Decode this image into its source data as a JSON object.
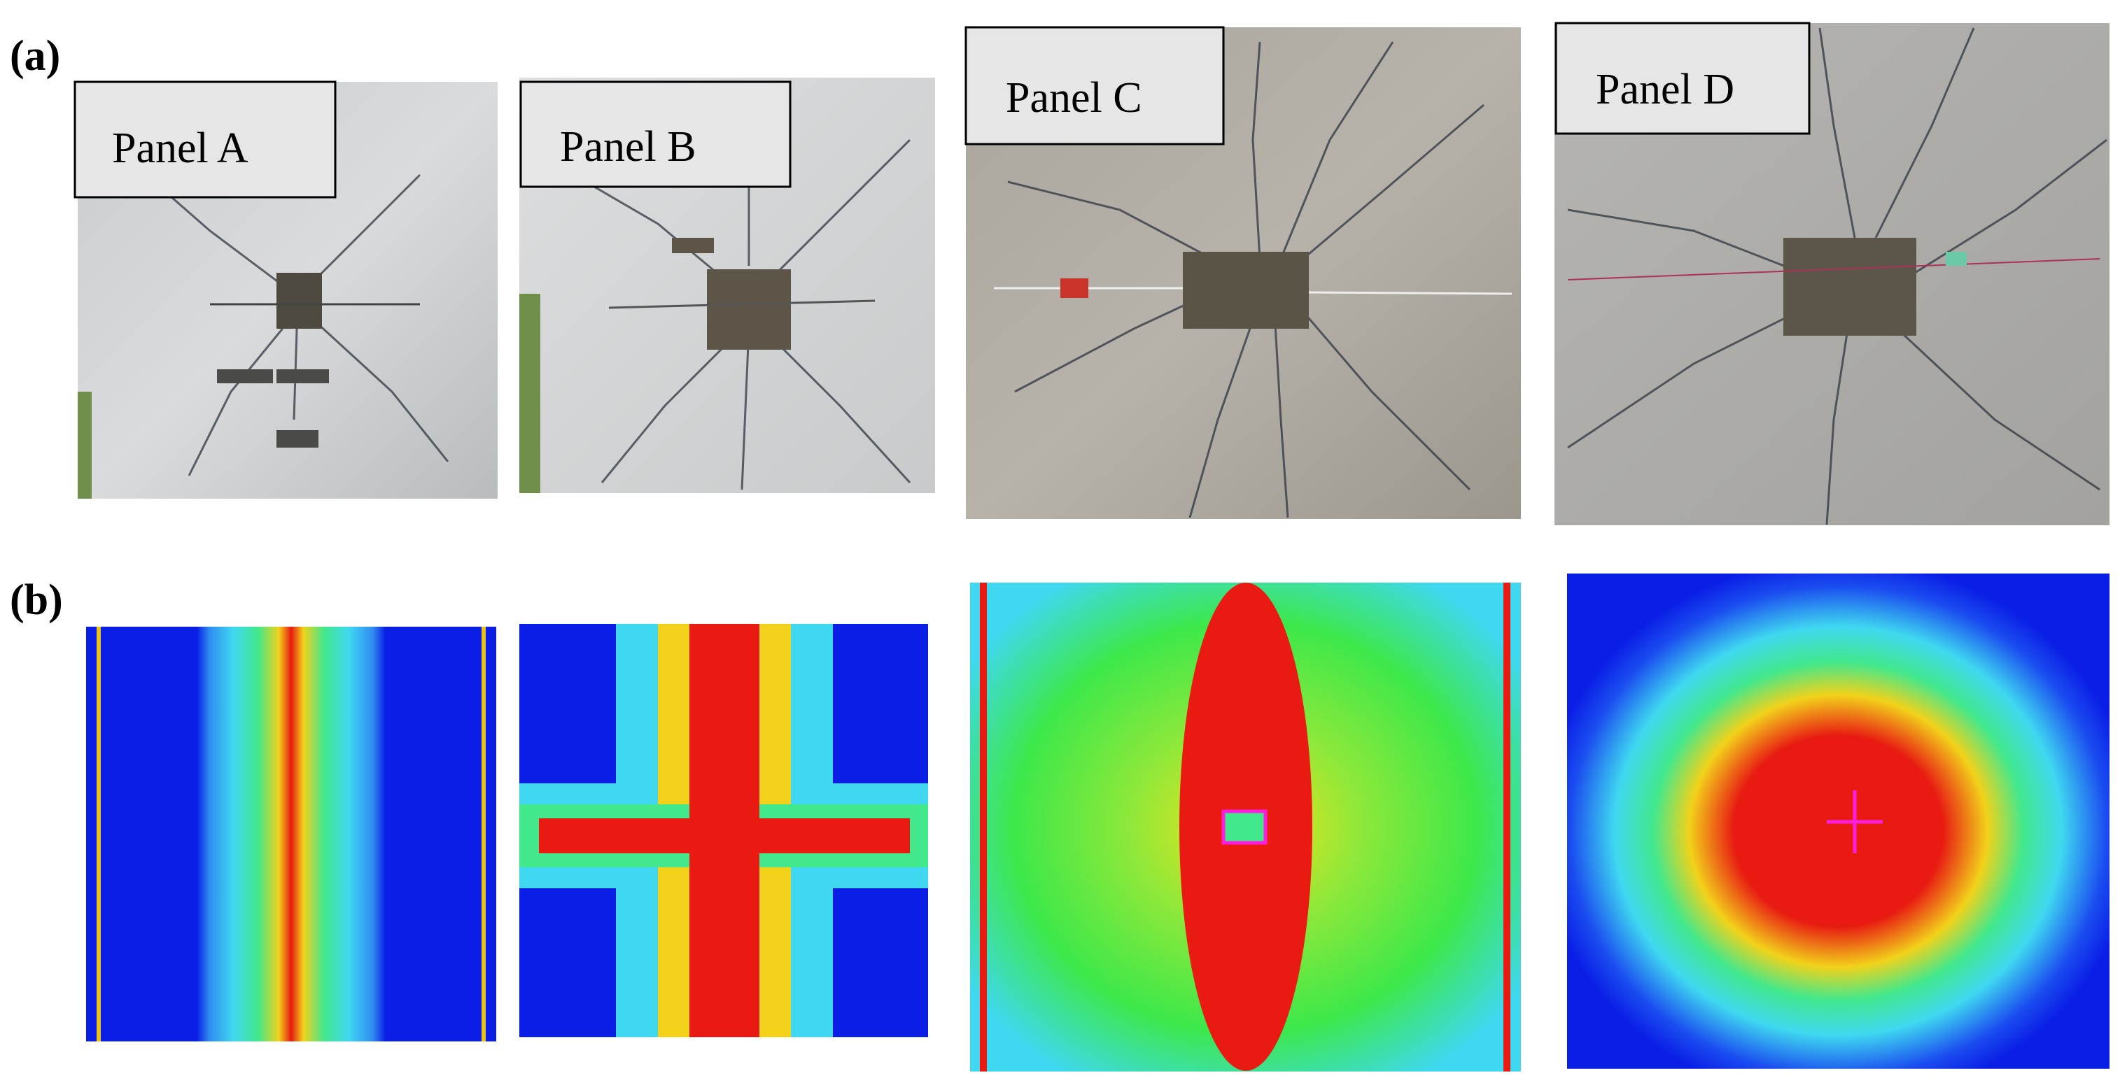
{
  "figure": {
    "row_a_label": "(a)",
    "row_b_label": "(b)",
    "panels": [
      {
        "label": "Panel A"
      },
      {
        "label": "Panel B"
      },
      {
        "label": "Panel C"
      },
      {
        "label": "Panel D"
      }
    ]
  }
}
